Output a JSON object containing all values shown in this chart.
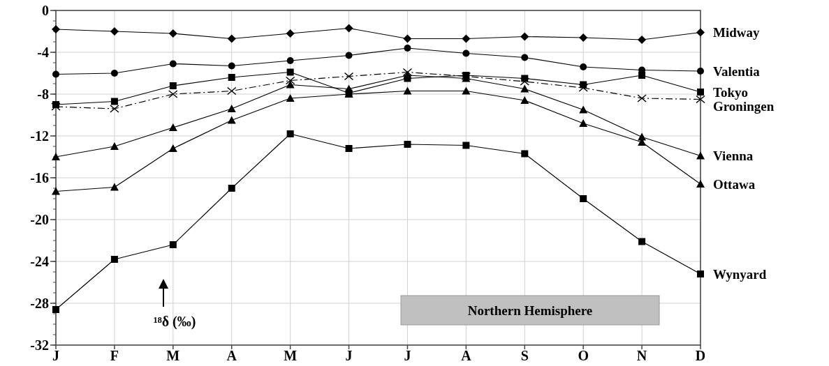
{
  "chart_data": {
    "type": "line",
    "categories": [
      "J",
      "F",
      "M",
      "A",
      "M",
      "J",
      "J",
      "A",
      "S",
      "O",
      "N",
      "D"
    ],
    "ylim": [
      -32,
      0
    ],
    "yticks": [
      0,
      -4,
      -8,
      -12,
      -16,
      -20,
      -24,
      -28,
      -32
    ],
    "grid": true,
    "legend": false,
    "annotations": [
      "¹⁸δ (‰)",
      "Northern Hemisphere"
    ],
    "series": [
      {
        "name": "Midway",
        "color": "#000000",
        "marker": "diamond",
        "values": [
          -1.8,
          -2.0,
          -2.2,
          -2.7,
          -2.2,
          -1.7,
          -2.7,
          -2.7,
          -2.5,
          -2.6,
          -2.8,
          -2.1
        ]
      },
      {
        "name": "Valentia",
        "color": "#000000",
        "marker": "circle",
        "values": [
          -6.1,
          -6.0,
          -5.1,
          -5.3,
          -4.8,
          -4.3,
          -3.6,
          -4.1,
          -4.5,
          -5.4,
          -5.7,
          -5.8
        ]
      },
      {
        "name": "Tokyo",
        "color": "#000000",
        "marker": "square",
        "values": [
          -9.0,
          -8.7,
          -7.2,
          -6.4,
          -5.9,
          -7.9,
          -6.5,
          -6.2,
          -6.5,
          -7.1,
          -6.2,
          -7.8
        ]
      },
      {
        "name": "Groningen",
        "color": "#000000",
        "marker": "cross",
        "line_style": "dashed",
        "values": [
          -9.2,
          -9.4,
          -8.0,
          -7.7,
          -6.7,
          -6.3,
          -5.9,
          -6.3,
          -6.8,
          -7.4,
          -8.4,
          -8.5
        ]
      },
      {
        "name": "Vienna",
        "color": "#000000",
        "marker": "triangle",
        "values": [
          -14.0,
          -13.0,
          -11.2,
          -9.4,
          -7.1,
          -7.5,
          -6.2,
          -6.5,
          -7.5,
          -9.5,
          -12.1,
          -13.9
        ]
      },
      {
        "name": "Ottawa",
        "color": "#000000",
        "marker": "triangle",
        "values": [
          -17.3,
          -16.9,
          -13.2,
          -10.5,
          -8.4,
          -8.0,
          -7.7,
          -7.7,
          -8.6,
          -10.8,
          -12.6,
          -16.6
        ]
      },
      {
        "name": "Wynyard",
        "color": "#000000",
        "marker": "square",
        "values": [
          -28.6,
          -23.8,
          -22.4,
          -17.0,
          -11.8,
          -13.2,
          -12.8,
          -12.9,
          -13.7,
          -18.0,
          -22.1,
          -25.2
        ]
      }
    ]
  }
}
